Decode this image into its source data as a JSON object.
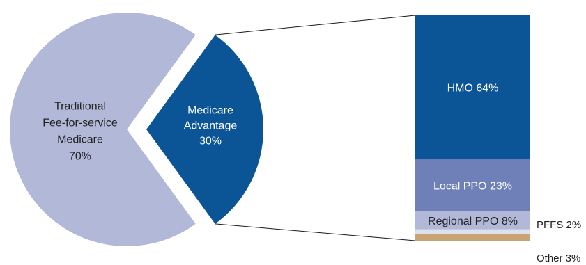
{
  "colors": {
    "traditional": "#b2b8d8",
    "advantage": "#0b5496",
    "hmo": "#0b5496",
    "local_ppo": "#6f7fb8",
    "regional_ppo": "#b2b8d8",
    "pffs": "#dde0ee",
    "other": "#c8a474",
    "connector": "#1a1a1a",
    "light_text": "#ffffff",
    "dark_text": "#222222"
  },
  "chart_data": [
    {
      "type": "pie",
      "slices": [
        {
          "label_lines": [
            "Traditional",
            "Fee-for-service",
            "Medicare",
            "70%"
          ],
          "value": 70
        },
        {
          "label_lines": [
            "Medicare",
            "Advantage",
            "30%"
          ],
          "value": 30,
          "exploded": true
        }
      ]
    },
    {
      "type": "bar",
      "stacked": true,
      "segments": [
        {
          "label": "HMO 64%",
          "value": 64,
          "label_position": "inside"
        },
        {
          "label": "Local PPO 23%",
          "value": 23,
          "label_position": "inside"
        },
        {
          "label": "Regional PPO 8%",
          "value": 8,
          "label_position": "inside"
        },
        {
          "label": "PFFS 2%",
          "value": 2,
          "label_position": "outside"
        },
        {
          "label": "Other 3%",
          "value": 3,
          "label_position": "outside"
        }
      ]
    }
  ]
}
